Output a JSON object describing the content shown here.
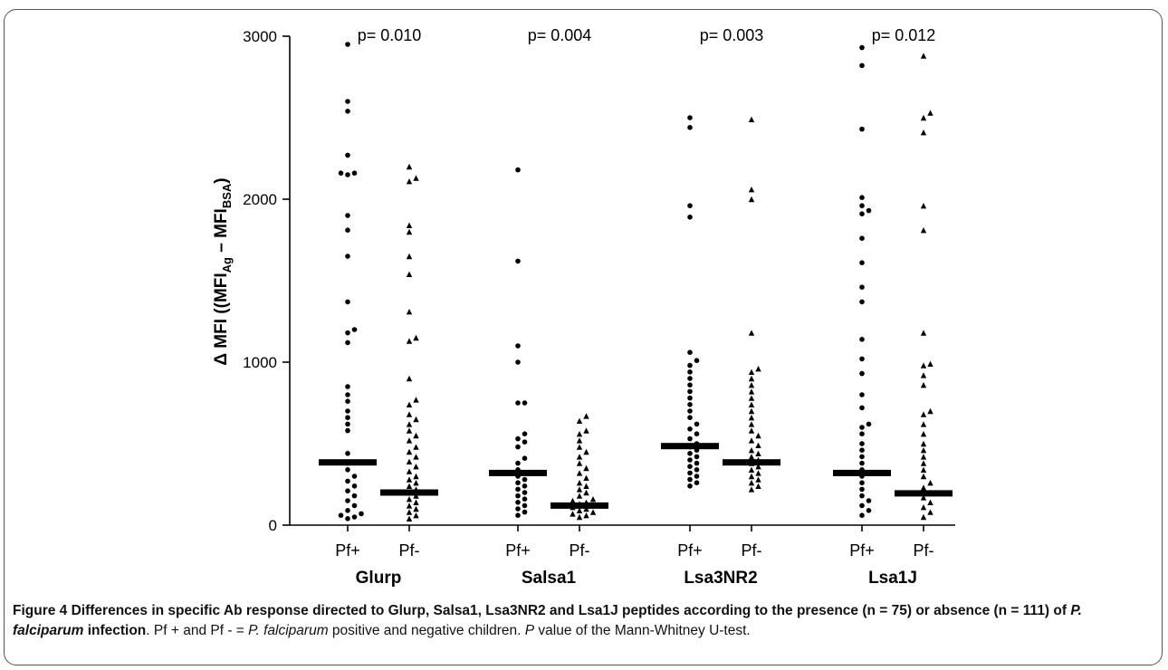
{
  "figure": {
    "caption_label": "Figure 4",
    "caption_title_1": "Differences in specific Ab response directed to Glurp, Salsa1, Lsa3NR2 and Lsa1J peptides according to the presence (n = 75) or absence (n = 111) of ",
    "caption_title_italic": "P. falciparum",
    "caption_title_2": " infection",
    "caption_text_1": ". Pf + and Pf - = ",
    "caption_text_italic_1": "P. falciparum",
    "caption_text_2": " positive and negative children. ",
    "caption_text_italic_2": "P",
    "caption_text_3": " value of the Mann-Whitney U-test."
  },
  "chart_data": {
    "type": "scatter",
    "subtype": "dot-plot with median bars",
    "ylabel": "Δ MFI ((MFIAg – MFIBSA)",
    "ylabel_parts": {
      "prefix": "Δ MFI ((MFI",
      "sub1": "Ag",
      "mid": " – MFI",
      "sub2": "BSA",
      "suffix": ")"
    },
    "ylim": [
      0,
      3000
    ],
    "yticks": [
      0,
      1000,
      2000,
      3000
    ],
    "grid": false,
    "legend": "none",
    "groups": [
      {
        "peptide": "Glurp",
        "p_value": "p= 0.010"
      },
      {
        "peptide": "Salsa1",
        "p_value": "p= 0.004"
      },
      {
        "peptide": "Lsa3NR2",
        "p_value": "p= 0.003"
      },
      {
        "peptide": "Lsa1J",
        "p_value": "p= 0.012"
      }
    ],
    "categories": [
      "Pf+",
      "Pf-",
      "Pf+",
      "Pf-",
      "Pf+",
      "Pf-",
      "Pf+",
      "Pf-"
    ],
    "series": [
      {
        "group": "Glurp",
        "category": "Pf+",
        "marker": "circle",
        "median": 385,
        "values": [
          2950,
          2600,
          2540,
          2270,
          2160,
          2160,
          2150,
          1900,
          1810,
          1650,
          1370,
          1200,
          1180,
          1120,
          850,
          800,
          760,
          700,
          660,
          620,
          580,
          440,
          380,
          340,
          300,
          270,
          240,
          210,
          180,
          150,
          120,
          90,
          70,
          60,
          50,
          40
        ]
      },
      {
        "group": "Glurp",
        "category": "Pf-",
        "marker": "triangle",
        "median": 200,
        "values": [
          2200,
          2130,
          2110,
          1840,
          1800,
          1650,
          1540,
          1310,
          1150,
          1130,
          900,
          770,
          740,
          680,
          650,
          620,
          580,
          550,
          520,
          480,
          450,
          420,
          390,
          360,
          330,
          300,
          280,
          260,
          240,
          220,
          200,
          180,
          160,
          140,
          120,
          100,
          80,
          60,
          40
        ]
      },
      {
        "group": "Salsa1",
        "category": "Pf+",
        "marker": "circle",
        "median": 320,
        "values": [
          2180,
          1620,
          1100,
          1000,
          750,
          750,
          560,
          530,
          510,
          480,
          410,
          380,
          340,
          320,
          300,
          280,
          260,
          240,
          220,
          200,
          180,
          160,
          140,
          120,
          100,
          80,
          60
        ]
      },
      {
        "group": "Salsa1",
        "category": "Pf-",
        "marker": "triangle",
        "median": 120,
        "values": [
          670,
          640,
          580,
          560,
          520,
          480,
          450,
          420,
          380,
          350,
          320,
          290,
          260,
          240,
          220,
          200,
          180,
          160,
          150,
          140,
          130,
          120,
          110,
          100,
          90,
          80,
          70,
          60,
          50
        ]
      },
      {
        "group": "Lsa3NR2",
        "category": "Pf+",
        "marker": "circle",
        "median": 485,
        "values": [
          2500,
          2440,
          1960,
          1890,
          1060,
          1010,
          980,
          940,
          900,
          860,
          820,
          780,
          740,
          700,
          660,
          620,
          590,
          560,
          530,
          500,
          480,
          460,
          440,
          420,
          400,
          380,
          360,
          340,
          320,
          300,
          280,
          260,
          240
        ]
      },
      {
        "group": "Lsa3NR2",
        "category": "Pf-",
        "marker": "triangle",
        "median": 385,
        "values": [
          2490,
          2060,
          2000,
          1180,
          960,
          940,
          900,
          860,
          820,
          780,
          740,
          700,
          660,
          620,
          580,
          550,
          520,
          490,
          460,
          440,
          420,
          400,
          380,
          360,
          340,
          320,
          300,
          280,
          260,
          240,
          220
        ]
      },
      {
        "group": "Lsa1J",
        "category": "Pf+",
        "marker": "circle",
        "median": 320,
        "values": [
          2930,
          2820,
          2430,
          2010,
          1960,
          1930,
          1910,
          1760,
          1610,
          1460,
          1370,
          1140,
          1020,
          930,
          800,
          720,
          620,
          600,
          560,
          500,
          460,
          420,
          380,
          340,
          300,
          260,
          220,
          180,
          150,
          120,
          90,
          60
        ]
      },
      {
        "group": "Lsa1J",
        "category": "Pf-",
        "marker": "triangle",
        "median": 195,
        "values": [
          2880,
          2530,
          2500,
          2410,
          1960,
          1810,
          1180,
          990,
          980,
          920,
          860,
          700,
          680,
          620,
          560,
          500,
          460,
          420,
          380,
          340,
          300,
          260,
          230,
          200,
          170,
          140,
          110,
          80,
          50
        ]
      }
    ]
  }
}
